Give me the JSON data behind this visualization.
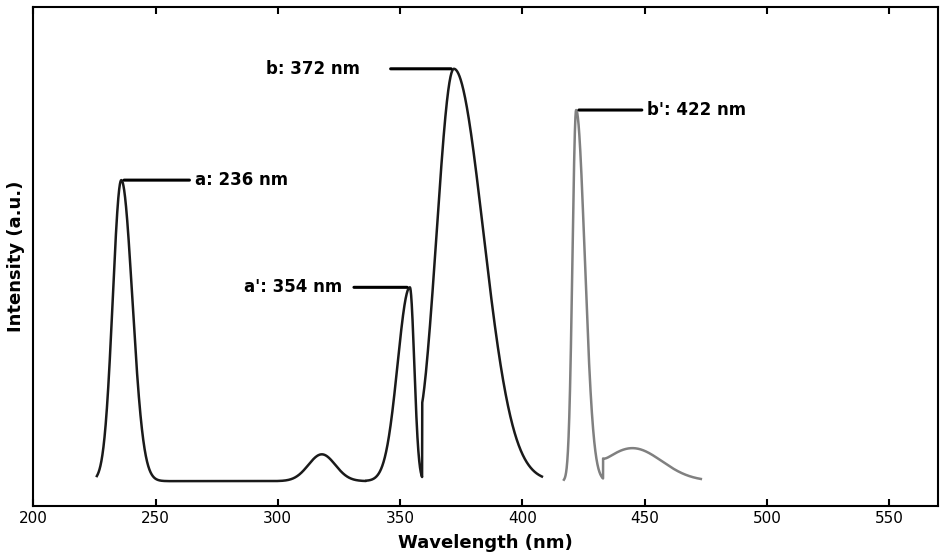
{
  "xlim": [
    200,
    570
  ],
  "xlabel": "Wavelength (nm)",
  "ylabel": "Intensity (a.u.)",
  "xticks": [
    200,
    250,
    300,
    350,
    400,
    450,
    500,
    550
  ],
  "background_color": "#ffffff",
  "curve_a_color": "#1a1a1a",
  "curve_b_color": "#808080",
  "curve_a_lw": 1.8,
  "curve_b_lw": 1.8,
  "ann_lw": 2.2,
  "ann_fontsize": 12,
  "axis_fontsize": 13
}
